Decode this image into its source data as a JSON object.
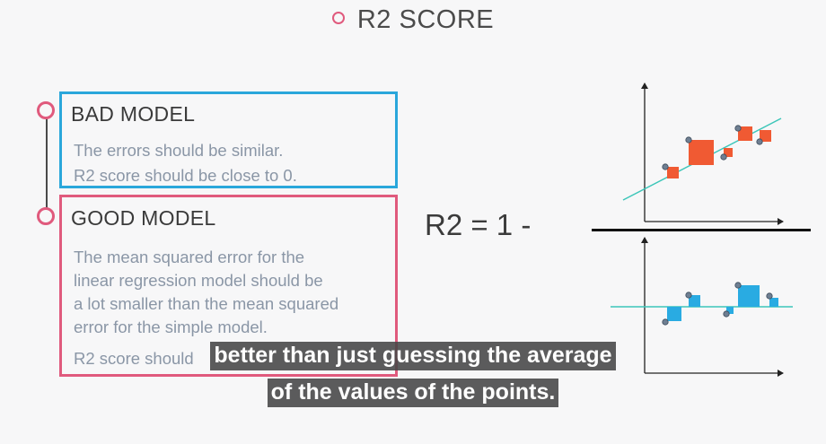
{
  "slide": {
    "title": "R2 SCORE",
    "formula": "R2 = 1 -"
  },
  "bad_model": {
    "heading": "BAD MODEL",
    "lines": [
      "The errors should be similar.",
      "R2 score should be close to 0."
    ]
  },
  "good_model": {
    "heading": "GOOD MODEL",
    "lines": [
      "The mean squared error for the",
      "linear regression model should be",
      "a lot smaller than the mean squared",
      "error for the simple model.",
      "R2 score should"
    ]
  },
  "subtitles": {
    "line1": "better than just guessing the average",
    "line2": "of the values of the points."
  },
  "colors": {
    "accent_pink": "#e05a7d",
    "accent_blue": "#2aa7db",
    "error_square_orange": "#f05a33",
    "error_square_blue": "#29abe2",
    "fit_line": "#3cc6b9"
  },
  "icons": {
    "title_bullet": "ring-icon",
    "timeline_markers": "ring-icon"
  }
}
